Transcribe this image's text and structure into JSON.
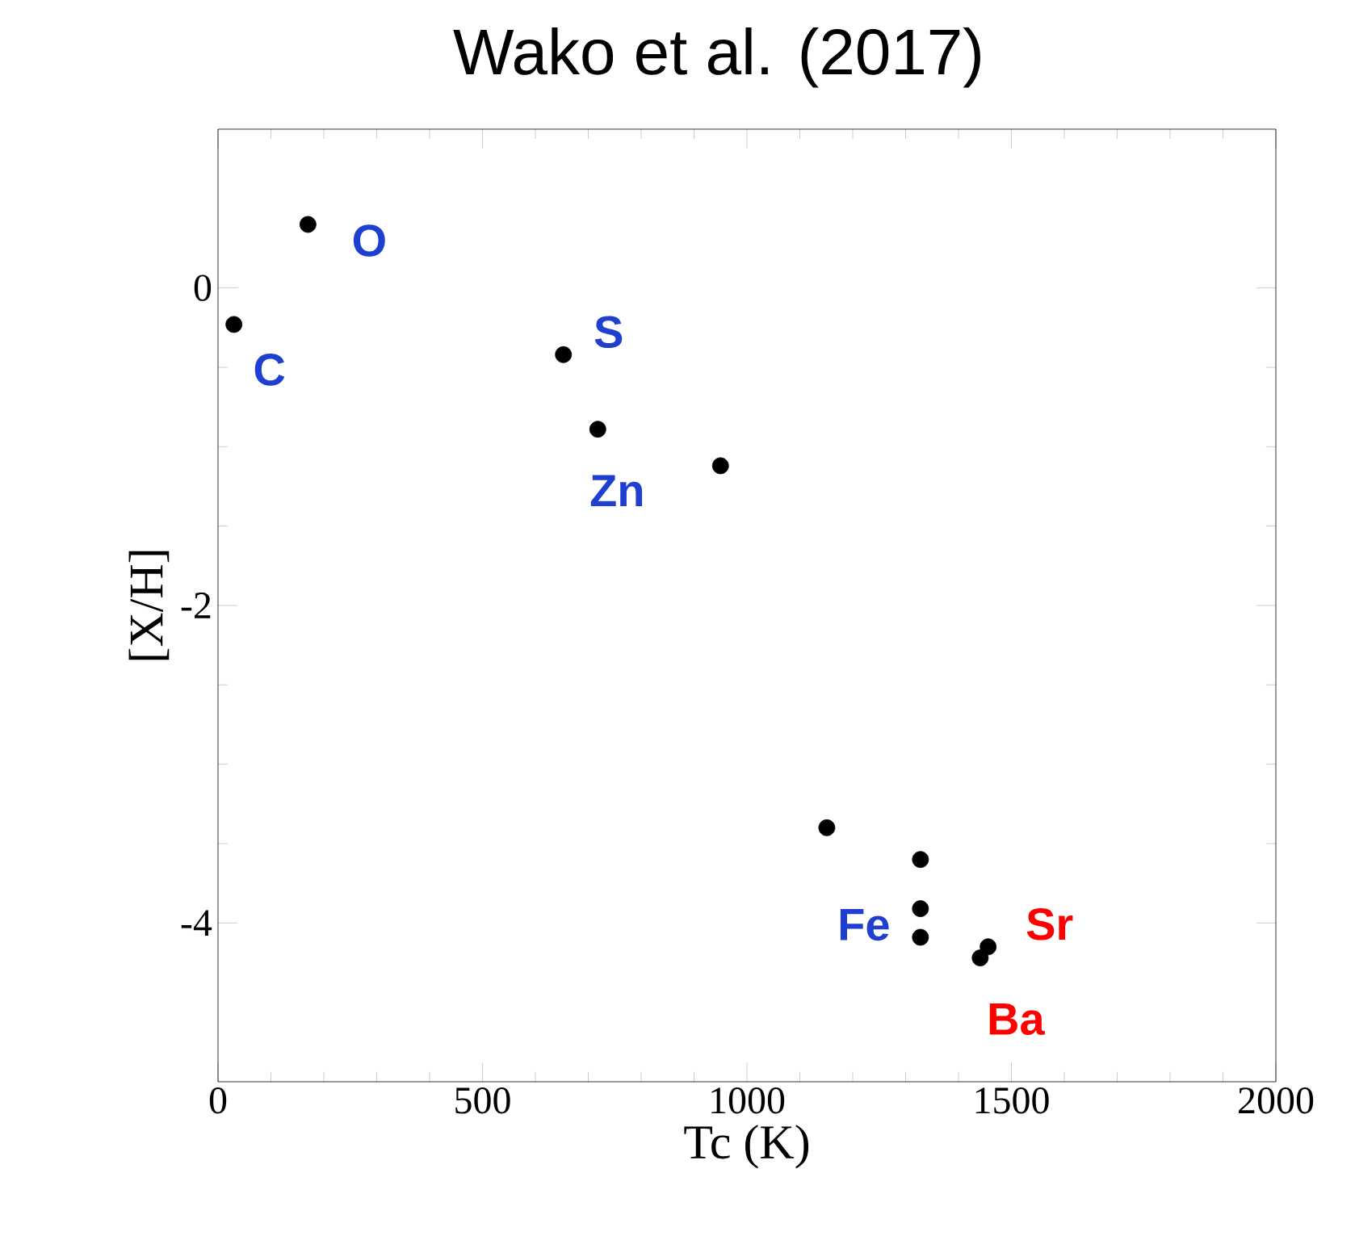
{
  "chart_data": {
    "type": "scatter",
    "title": "Wako et al. (2017)",
    "xlabel": "Tc (K)",
    "ylabel": "[X/H]",
    "x": [
      170,
      30,
      653,
      718,
      950,
      1151,
      1328,
      1328,
      1328,
      1456,
      1441
    ],
    "values": [
      0.4,
      -0.23,
      -0.42,
      -0.89,
      -1.12,
      -3.4,
      -3.6,
      -3.91,
      -4.09,
      -4.15,
      -4.22
    ],
    "color": "#000000",
    "marker": "circle",
    "xlim": [
      0,
      2000
    ],
    "ylim": [
      -5,
      1
    ],
    "xticks": [
      0,
      500,
      1000,
      1500,
      2000
    ],
    "yticks": [
      -4,
      -2,
      0
    ],
    "grid": false,
    "annotations": [
      {
        "text": "O",
        "x": 170,
        "y": 0.4
      },
      {
        "text": "C",
        "x": 30,
        "y": -0.23
      },
      {
        "text": "S",
        "x": 653,
        "y": -0.42
      },
      {
        "text": "Zn",
        "x": 718,
        "y": -0.89
      },
      {
        "text": "Fe",
        "x": 1328,
        "y": -3.91
      },
      {
        "text": "Sr",
        "x": 1456,
        "y": -4.15
      },
      {
        "text": "Ba",
        "x": 1441,
        "y": -4.22
      }
    ]
  }
}
